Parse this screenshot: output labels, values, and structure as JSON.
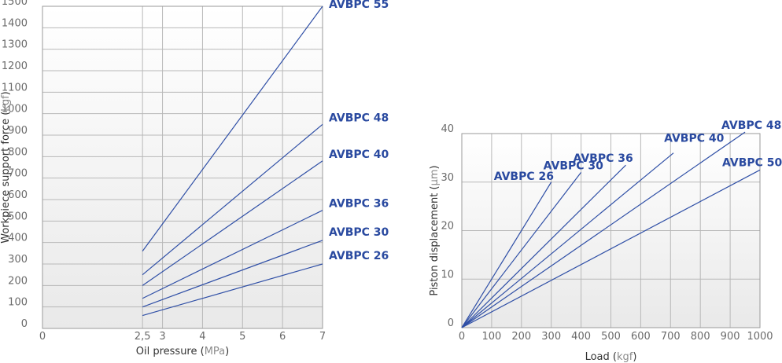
{
  "chart_data": [
    {
      "type": "line",
      "title": "",
      "xlabel": "Oil pressure",
      "xunit": "MPa",
      "ylabel": "Workpiece support force",
      "yunit": "kgf",
      "xlim": [
        0,
        7
      ],
      "ylim": [
        0,
        1500
      ],
      "xticks": [
        0,
        2.5,
        3,
        4,
        5,
        6,
        7
      ],
      "xtick_labels": [
        "0",
        "2,5",
        "3",
        "4",
        "5",
        "6",
        "7"
      ],
      "yticks": [
        0,
        100,
        200,
        300,
        400,
        500,
        600,
        700,
        800,
        900,
        1000,
        1100,
        1200,
        1300,
        1400,
        1500
      ],
      "grid": true,
      "legend": "labels at line ends (right)",
      "series": [
        {
          "name": "AVBPC 55",
          "x": [
            2.5,
            7
          ],
          "y": [
            360,
            1500
          ]
        },
        {
          "name": "AVBPC 48",
          "x": [
            2.5,
            7
          ],
          "y": [
            250,
            950
          ]
        },
        {
          "name": "AVBPC 40",
          "x": [
            2.5,
            7
          ],
          "y": [
            200,
            780
          ]
        },
        {
          "name": "AVBPC 36",
          "x": [
            2.5,
            7
          ],
          "y": [
            140,
            550
          ]
        },
        {
          "name": "AVBPC 30",
          "x": [
            2.5,
            7
          ],
          "y": [
            100,
            410
          ]
        },
        {
          "name": "AVBPC 26",
          "x": [
            2.5,
            7
          ],
          "y": [
            60,
            300
          ]
        }
      ]
    },
    {
      "type": "line",
      "title": "",
      "xlabel": "Load",
      "xunit": "kgf",
      "ylabel": "Piston displacement",
      "yunit": "μm",
      "xlim": [
        0,
        1000
      ],
      "ylim": [
        0,
        40
      ],
      "xticks": [
        0,
        100,
        200,
        300,
        400,
        500,
        600,
        700,
        800,
        900,
        1000
      ],
      "yticks": [
        0,
        10,
        20,
        30,
        40
      ],
      "grid": true,
      "legend": "labels at line ends (top-right)",
      "series": [
        {
          "name": "AVBPC 26",
          "x": [
            0,
            300
          ],
          "y": [
            0,
            30
          ]
        },
        {
          "name": "AVBPC 30",
          "x": [
            0,
            400
          ],
          "y": [
            0,
            32
          ]
        },
        {
          "name": "AVBPC 36",
          "x": [
            0,
            550
          ],
          "y": [
            0,
            33.5
          ]
        },
        {
          "name": "AVBPC 40",
          "x": [
            0,
            710
          ],
          "y": [
            0,
            36
          ]
        },
        {
          "name": "AVBPC 48",
          "x": [
            0,
            950
          ],
          "y": [
            0,
            40.3
          ]
        },
        {
          "name": "AVBPC 50",
          "x": [
            0,
            1000
          ],
          "y": [
            0,
            32.5
          ]
        }
      ]
    }
  ]
}
